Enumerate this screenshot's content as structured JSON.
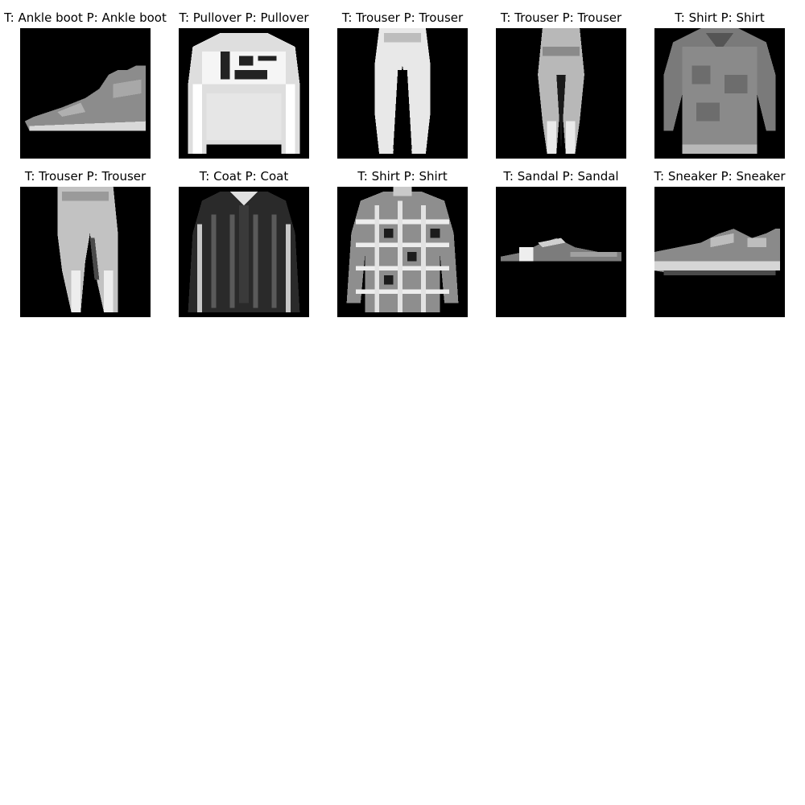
{
  "grid": {
    "items": [
      {
        "label": "T: Ankle boot P: Ankle boot",
        "item": "ankle-boot"
      },
      {
        "label": "T: Pullover P: Pullover",
        "item": "pullover"
      },
      {
        "label": "T: Trouser P: Trouser",
        "item": "trouser"
      },
      {
        "label": "T: Trouser P: Trouser",
        "item": "trouser"
      },
      {
        "label": "T: Shirt P: Shirt",
        "item": "shirt"
      },
      {
        "label": "T: Trouser P: Trouser",
        "item": "trouser"
      },
      {
        "label": "T: Coat P: Coat",
        "item": "coat"
      },
      {
        "label": "T: Shirt P: Shirt",
        "item": "shirt"
      },
      {
        "label": "T: Sandal P: Sandal",
        "item": "sandal"
      },
      {
        "label": "T: Sneaker P: Sneaker",
        "item": "sneaker"
      }
    ]
  }
}
